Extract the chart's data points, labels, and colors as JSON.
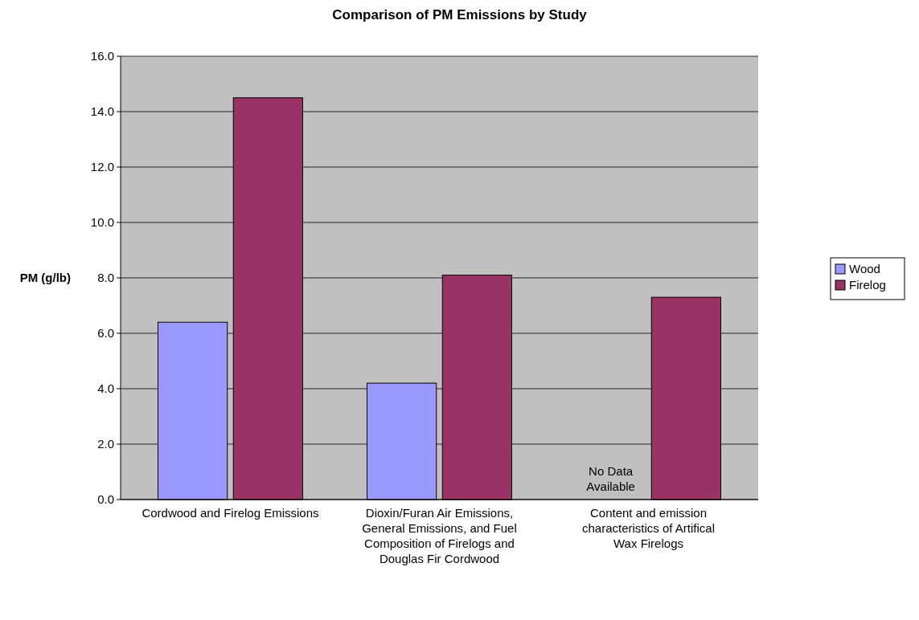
{
  "chart_data": {
    "type": "bar",
    "title": "Comparison of PM Emissions by Study",
    "ylabel": "PM (g/lb)",
    "categories": [
      "Cordwood and Firelog Emissions",
      "Dioxin/Furan Air Emissions, General Emissions, and Fuel Composition of Firelogs and Douglas Fir Cordwood",
      "Content and emission characteristics of Artifical Wax Firelogs"
    ],
    "series": [
      {
        "name": "Wood",
        "color": "#9999ff",
        "values": [
          6.4,
          4.2,
          null
        ]
      },
      {
        "name": "Firelog",
        "color": "#993366",
        "values": [
          14.5,
          8.1,
          7.3
        ]
      }
    ],
    "ylim": [
      0,
      16
    ],
    "yticks": [
      {
        "value": 0,
        "label": "0.0"
      },
      {
        "value": 2,
        "label": "2.0"
      },
      {
        "value": 4,
        "label": "4.0"
      },
      {
        "value": 6,
        "label": "6.0"
      },
      {
        "value": 8,
        "label": "8.0"
      },
      {
        "value": 10,
        "label": "10.0"
      },
      {
        "value": 12,
        "label": "12.0"
      },
      {
        "value": 14,
        "label": "14.0"
      },
      {
        "value": 16,
        "label": "16.0"
      }
    ],
    "grid": "y",
    "legend": "right",
    "annotations": [
      {
        "text": "No Data Available",
        "x": "Content and emission characteristics of Artifical Wax Firelogs"
      }
    ]
  }
}
